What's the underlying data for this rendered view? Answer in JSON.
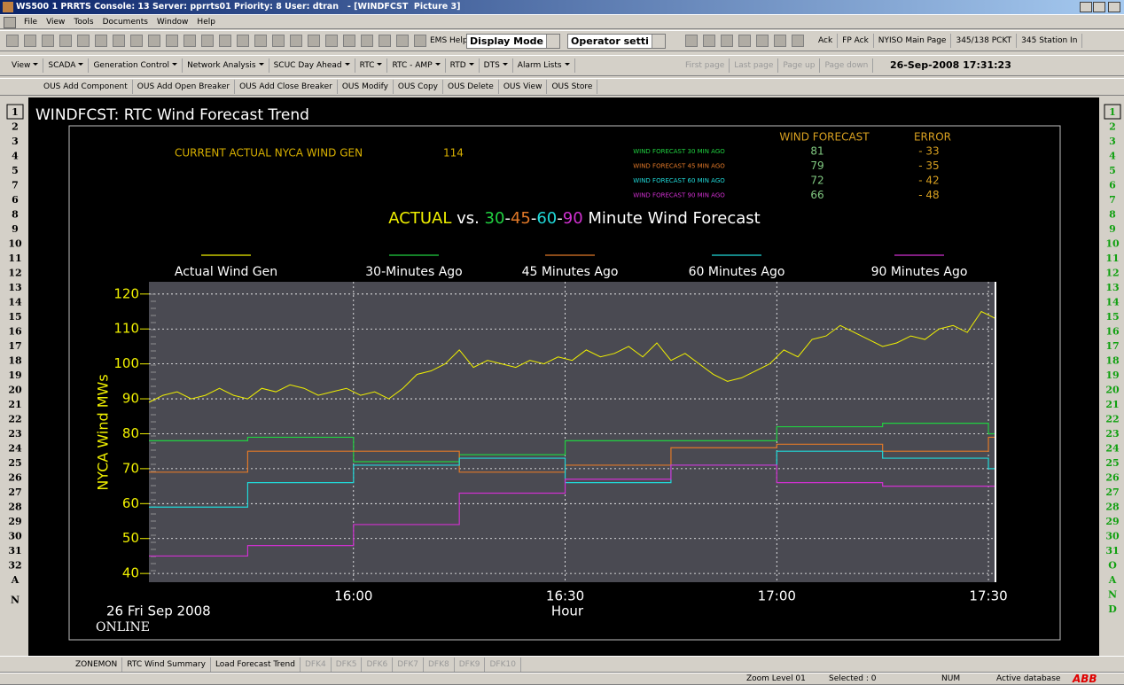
{
  "window": {
    "title": "WS500 1 PRRTS Console: 13 Server: pprrts01 Priority: 8 User: dtran   - [WINDFCST  Picture 3]"
  },
  "menu": [
    "File",
    "View",
    "Tools",
    "Documents",
    "Window",
    "Help"
  ],
  "toolbar1": {
    "menus": [
      "EMS Help"
    ],
    "combos": [
      "Display Mode",
      "Operator setti"
    ],
    "buttons": [
      "Ack",
      "FP Ack",
      "NYISO Main Page",
      "345/138 PCKT",
      "345 Station In"
    ]
  },
  "toolbar2": {
    "menus": [
      "View",
      "SCADA",
      "Generation Control",
      "Network Analysis",
      "SCUC Day Ahead",
      "RTC",
      "RTC - AMP",
      "RTD",
      "DTS",
      "Alarm Lists"
    ],
    "disabled": [
      "First page",
      "Last page",
      "Page up",
      "Page down"
    ],
    "clock": "26-Sep-2008 17:31:23"
  },
  "toolbar3": [
    "OUS Add Component",
    "OUS Add Open Breaker",
    "OUS Add Close Breaker",
    "OUS Modify",
    "OUS Copy",
    "OUS Delete",
    "OUS View",
    "OUS Store"
  ],
  "left_rows": [
    "1",
    "2",
    "3",
    "4",
    "5",
    "7",
    "6",
    "8",
    "9",
    "10",
    "11",
    "12",
    "13",
    "14",
    "15",
    "16",
    "17",
    "18",
    "19",
    "20",
    "21",
    "22",
    "23",
    "24",
    "25",
    "26",
    "27",
    "28",
    "29",
    "30",
    "31",
    "32",
    "A",
    "N"
  ],
  "right_rows": [
    "1",
    "2",
    "3",
    "4",
    "5",
    "6",
    "7",
    "8",
    "9",
    "10",
    "11",
    "12",
    "13",
    "14",
    "15",
    "16",
    "17",
    "18",
    "19",
    "20",
    "21",
    "22",
    "23",
    "24",
    "25",
    "26",
    "27",
    "28",
    "29",
    "30",
    "31",
    "O",
    "A",
    "N",
    "D"
  ],
  "display": {
    "heading": "WINDFCST: RTC Wind Forecast Trend",
    "current_label": "CURRENT ACTUAL NYCA WIND GEN",
    "current_value": 114,
    "table": {
      "headers": [
        "WIND FORECAST",
        "ERROR"
      ],
      "rows": [
        {
          "label": "WIND FORECAST 30 MIN AGO",
          "forecast": 81,
          "error": "- 33"
        },
        {
          "label": "WIND FORECAST 45 MIN AGO",
          "forecast": 79,
          "error": "- 35"
        },
        {
          "label": "WIND FORECAST 60 MIN AGO",
          "forecast": 72,
          "error": "- 42"
        },
        {
          "label": "WIND FORECAST 90 MIN AGO",
          "forecast": 66,
          "error": "- 48"
        }
      ]
    },
    "date": "26 Fri Sep 2008",
    "status": "ONLINE"
  },
  "chart_data": {
    "type": "line",
    "title_parts": [
      "ACTUAL",
      " vs. ",
      "30",
      "-",
      "45",
      "-",
      "60",
      "-",
      "90",
      " Minute Wind Forecast"
    ],
    "x_label": "Hour",
    "y_label": "NYCA Wind MWs",
    "xlim": [
      "15:31",
      "17:31"
    ],
    "xticks": [
      "16:00",
      "16:30",
      "17:00",
      "17:30"
    ],
    "ylim": [
      37.5,
      123.5
    ],
    "yticks": [
      40,
      50,
      60,
      70,
      80,
      90,
      100,
      110,
      120
    ],
    "grid": true,
    "series": [
      {
        "name": "Actual Wind Gen",
        "color": "#f0f000",
        "x": [
          "15:31",
          "15:33",
          "15:35",
          "15:37",
          "15:39",
          "15:41",
          "15:43",
          "15:45",
          "15:47",
          "15:49",
          "15:51",
          "15:53",
          "15:55",
          "15:57",
          "15:59",
          "16:01",
          "16:03",
          "16:05",
          "16:07",
          "16:09",
          "16:11",
          "16:13",
          "16:15",
          "16:17",
          "16:19",
          "16:21",
          "16:23",
          "16:25",
          "16:27",
          "16:29",
          "16:31",
          "16:33",
          "16:35",
          "16:37",
          "16:39",
          "16:41",
          "16:43",
          "16:45",
          "16:47",
          "16:49",
          "16:51",
          "16:53",
          "16:55",
          "16:57",
          "16:59",
          "17:01",
          "17:03",
          "17:05",
          "17:07",
          "17:09",
          "17:11",
          "17:13",
          "17:15",
          "17:17",
          "17:19",
          "17:21",
          "17:23",
          "17:25",
          "17:27",
          "17:29",
          "17:31"
        ],
        "values": [
          89,
          91,
          92,
          90,
          91,
          93,
          91,
          90,
          93,
          92,
          94,
          93,
          91,
          92,
          93,
          91,
          92,
          90,
          93,
          97,
          98,
          100,
          104,
          99,
          101,
          100,
          99,
          101,
          100,
          102,
          101,
          104,
          102,
          103,
          105,
          102,
          106,
          101,
          103,
          100,
          97,
          95,
          96,
          98,
          100,
          104,
          102,
          107,
          108,
          111,
          109,
          107,
          105,
          106,
          108,
          107,
          110,
          111,
          109,
          115,
          113
        ]
      },
      {
        "name": "30-Minutes Ago",
        "color": "#20d040",
        "step": "post",
        "x": [
          "15:31",
          "15:45",
          "16:00",
          "16:15",
          "16:30",
          "16:45",
          "17:00",
          "17:15",
          "17:30"
        ],
        "values": [
          78,
          79,
          72,
          74,
          78,
          78,
          82,
          83,
          80
        ]
      },
      {
        "name": "45 Minutes Ago",
        "color": "#e07828",
        "step": "post",
        "x": [
          "15:31",
          "15:45",
          "16:00",
          "16:15",
          "16:30",
          "16:45",
          "17:00",
          "17:15",
          "17:30"
        ],
        "values": [
          69,
          75,
          75,
          69,
          71,
          76,
          77,
          75,
          79
        ]
      },
      {
        "name": "60 Minutes Ago",
        "color": "#20d8d8",
        "step": "post",
        "x": [
          "15:31",
          "15:45",
          "16:00",
          "16:15",
          "16:30",
          "16:45",
          "17:00",
          "17:15",
          "17:30"
        ],
        "values": [
          59,
          66,
          71,
          73,
          66,
          71,
          75,
          73,
          70
        ]
      },
      {
        "name": "90 Minutes Ago",
        "color": "#d030d0",
        "step": "post",
        "x": [
          "15:31",
          "15:45",
          "16:00",
          "16:15",
          "16:30",
          "16:45",
          "17:00",
          "17:15",
          "17:30"
        ],
        "values": [
          45,
          48,
          54,
          63,
          67,
          71,
          66,
          65,
          65
        ]
      }
    ]
  },
  "tabs": {
    "active": [
      "ZONEMON",
      "RTC Wind Summary",
      "Load Forecast Trend"
    ],
    "disabled": [
      "DFK4",
      "DFK5",
      "DFK6",
      "DFK7",
      "DFK8",
      "DFK9",
      "DFK10"
    ]
  },
  "statusbar": {
    "zoom": "Zoom Level 01",
    "selected": "Selected : 0",
    "num": "NUM",
    "database": "Active database",
    "logo": "ABB"
  }
}
